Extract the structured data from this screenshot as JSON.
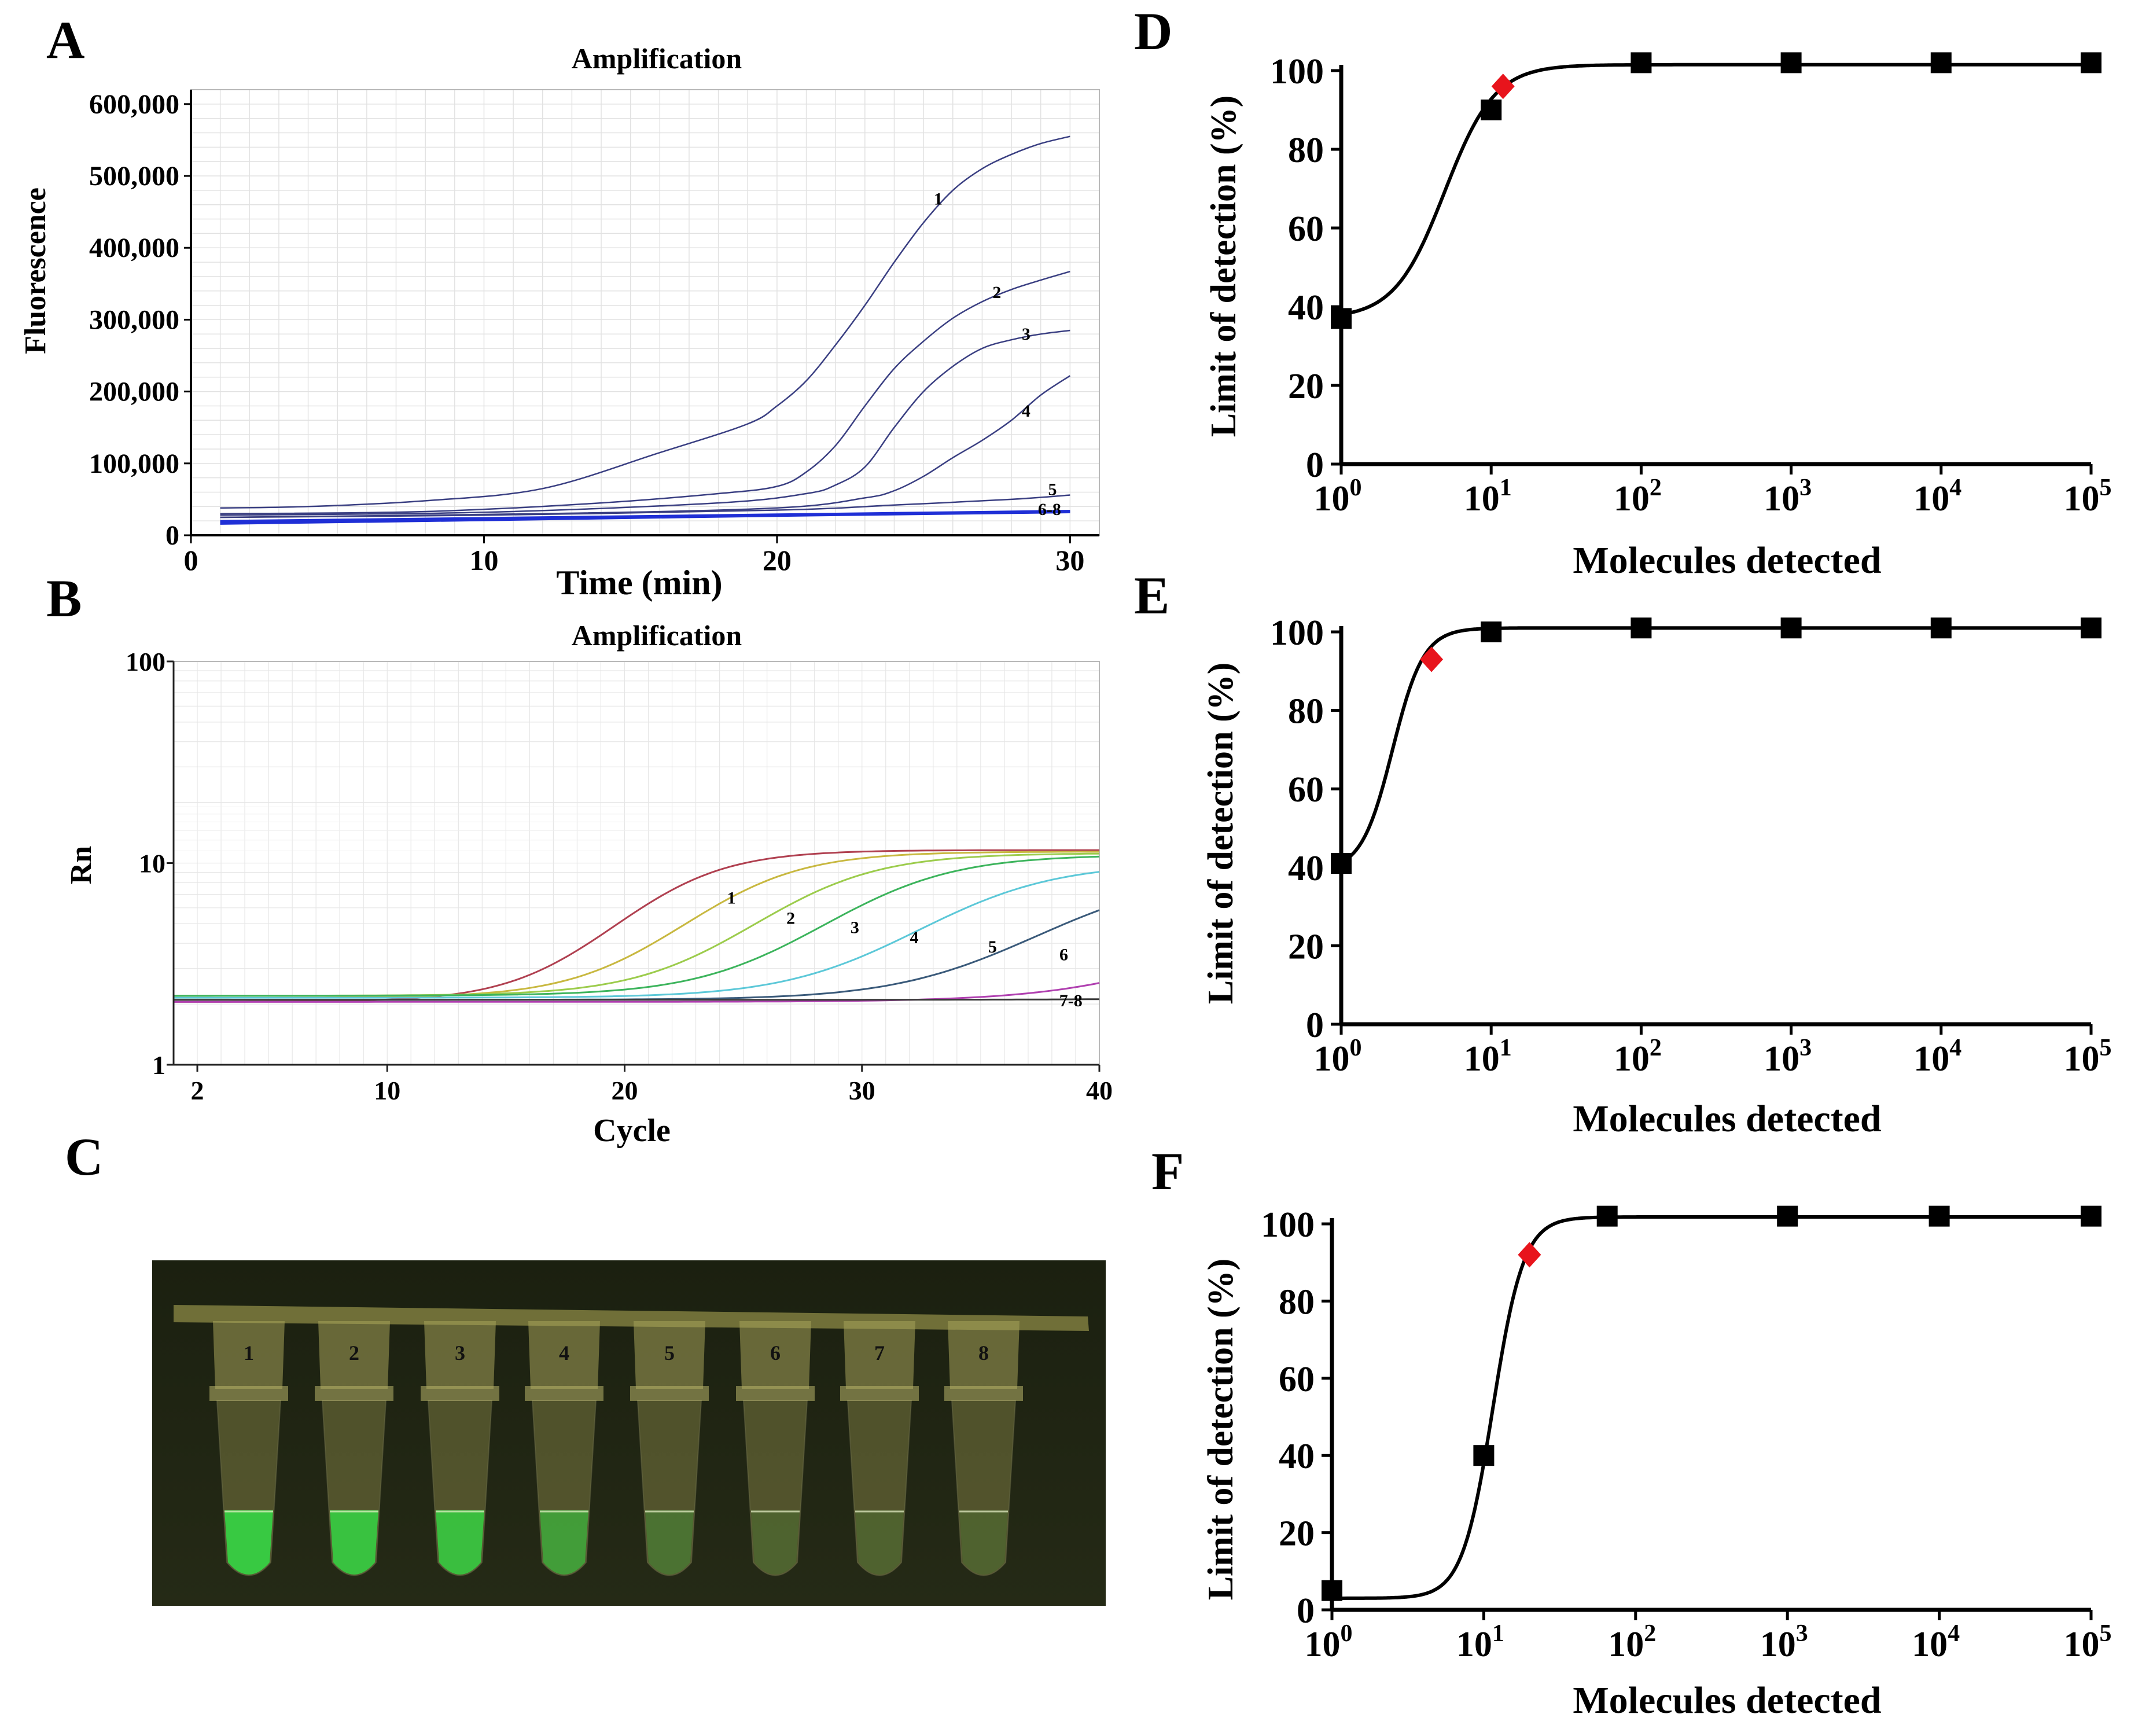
{
  "panels": {
    "A": {
      "letter": "A"
    },
    "B": {
      "letter": "B"
    },
    "C": {
      "letter": "C"
    },
    "D": {
      "letter": "D"
    },
    "E": {
      "letter": "E"
    },
    "F": {
      "letter": "F"
    }
  },
  "colors": {
    "curve_A": "#3a3f82",
    "curve_A_low": "#1f2fd6",
    "lod_line": "#000000",
    "lod_marker": "#000000",
    "lod_highlight": "#e8141c",
    "gel_bg": "#1f2413",
    "fluor_green": "#35d844"
  },
  "tubes": {
    "labels": [
      "1",
      "2",
      "3",
      "4",
      "5",
      "6",
      "7",
      "8"
    ],
    "fluorescence": [
      0.95,
      0.9,
      0.85,
      0.55,
      0.18,
      0.05,
      0.04,
      0.04
    ]
  },
  "chart_data": [
    {
      "id": "A",
      "type": "line",
      "title": "Amplification",
      "xlabel": "Time (min)",
      "ylabel": "Fluorescence",
      "xlim": [
        0,
        31
      ],
      "ylim": [
        0,
        620000
      ],
      "xticks": [
        "0",
        "10",
        "20",
        "30"
      ],
      "yticks": [
        "0",
        "100,000",
        "200,000",
        "300,000",
        "400,000",
        "500,000",
        "600,000"
      ],
      "grid": true,
      "series": [
        {
          "name": "1",
          "x": [
            1,
            4,
            8,
            12,
            16,
            19,
            20,
            21,
            22,
            23,
            24,
            25,
            26,
            27,
            28,
            29,
            30
          ],
          "y": [
            38000,
            40000,
            48000,
            65000,
            115000,
            155000,
            180000,
            215000,
            265000,
            320000,
            380000,
            435000,
            480000,
            510000,
            530000,
            545000,
            555000
          ]
        },
        {
          "name": "2",
          "x": [
            1,
            8,
            14,
            18,
            20,
            21,
            22,
            23,
            24,
            25,
            26,
            27,
            28,
            29,
            30
          ],
          "y": [
            30000,
            33000,
            45000,
            58000,
            68000,
            88000,
            125000,
            180000,
            232000,
            270000,
            302000,
            325000,
            342000,
            355000,
            367000
          ]
        },
        {
          "name": "3",
          "x": [
            1,
            10,
            18,
            21,
            22,
            23,
            24,
            25,
            26,
            27,
            28,
            29,
            30
          ],
          "y": [
            28000,
            32000,
            45000,
            58000,
            70000,
            95000,
            150000,
            200000,
            235000,
            260000,
            272000,
            280000,
            285000
          ]
        },
        {
          "name": "4",
          "x": [
            1,
            12,
            20,
            23,
            24,
            25,
            26,
            27,
            28,
            29,
            30
          ],
          "y": [
            25000,
            30000,
            38000,
            52000,
            62000,
            82000,
            108000,
            132000,
            160000,
            195000,
            222000
          ]
        },
        {
          "name": "5",
          "x": [
            1,
            10,
            20,
            24,
            28,
            30
          ],
          "y": [
            25000,
            28000,
            35000,
            42000,
            50000,
            56000
          ]
        },
        {
          "name": "6",
          "x": [
            1,
            10,
            20,
            30
          ],
          "y": [
            20000,
            24000,
            29000,
            34000
          ]
        },
        {
          "name": "7",
          "x": [
            1,
            10,
            20,
            30
          ],
          "y": [
            18000,
            22000,
            28000,
            33000
          ]
        },
        {
          "name": "8",
          "x": [
            1,
            10,
            20,
            30
          ],
          "y": [
            16000,
            21000,
            27000,
            32000
          ]
        }
      ],
      "annotations": [
        "1",
        "2",
        "3",
        "4",
        "5",
        "6-8"
      ]
    },
    {
      "id": "B",
      "type": "line",
      "title": "Amplification",
      "xlabel": "Cycle",
      "ylabel": "Rn",
      "xlim": [
        1,
        40
      ],
      "ylim": [
        1,
        100
      ],
      "yscale": "log",
      "xticks": [
        "2",
        "10",
        "20",
        "30",
        "40"
      ],
      "yticks": [
        "1",
        "10",
        "100"
      ],
      "grid": true,
      "series": [
        {
          "name": "1",
          "color": "#b04050",
          "midpoint": 21.5,
          "slope": 0.45,
          "base": 2.05,
          "top": 11.6
        },
        {
          "name": "2",
          "color": "#c8b840",
          "midpoint": 24.5,
          "slope": 0.42,
          "base": 2.15,
          "top": 11.4
        },
        {
          "name": "3",
          "color": "#9ccc4c",
          "midpoint": 27.5,
          "slope": 0.4,
          "base": 2.2,
          "top": 11.2
        },
        {
          "name": "4",
          "color": "#3cb45c",
          "midpoint": 30.5,
          "slope": 0.38,
          "base": 2.2,
          "top": 11.0
        },
        {
          "name": "5",
          "color": "#5cc8d8",
          "midpoint": 34.5,
          "slope": 0.36,
          "base": 2.15,
          "top": 10.0
        },
        {
          "name": "6",
          "color": "#3a5a7a",
          "midpoint": 39.5,
          "slope": 0.34,
          "base": 2.1,
          "top": 9.0
        },
        {
          "name": "7",
          "color": "#b040b0",
          "midpoint": 48.0,
          "slope": 0.3,
          "base": 2.05,
          "top": 8.0
        },
        {
          "name": "8",
          "color": "#3a3a3a",
          "midpoint": 60.0,
          "slope": 0.3,
          "base": 2.1,
          "top": 8.0
        }
      ],
      "annotations": [
        "1",
        "2",
        "3",
        "4",
        "5",
        "6",
        "7-8"
      ]
    },
    {
      "id": "D",
      "type": "scatter",
      "xlabel": "Molecules detected",
      "ylabel": "Limit of detection (%)",
      "xscale": "log",
      "xlim": [
        1,
        100000
      ],
      "ylim": [
        0,
        100
      ],
      "xticks_exp": [
        "0",
        "1",
        "2",
        "3",
        "4",
        "5"
      ],
      "yticks": [
        "0",
        "20",
        "40",
        "60",
        "80",
        "100"
      ],
      "points": {
        "x": [
          1,
          10,
          100,
          1000,
          10000,
          100000
        ],
        "y": [
          37,
          90,
          102,
          102,
          102,
          102
        ]
      },
      "highlight": {
        "x": 12,
        "y": 96
      },
      "fit": {
        "top": 101.5,
        "bottom": 37,
        "ec50": 4.9,
        "hill": 2.6
      }
    },
    {
      "id": "E",
      "type": "scatter",
      "xlabel": "Molecules detected",
      "ylabel": "Limit of detection (%)",
      "xscale": "log",
      "xlim": [
        1,
        100000
      ],
      "ylim": [
        0,
        100
      ],
      "xticks_exp": [
        "0",
        "1",
        "2",
        "3",
        "4",
        "5"
      ],
      "yticks": [
        "0",
        "20",
        "40",
        "60",
        "80",
        "100"
      ],
      "points": {
        "x": [
          1,
          10,
          100,
          1000,
          10000,
          100000
        ],
        "y": [
          41,
          100,
          101,
          101,
          101,
          101
        ]
      },
      "highlight": {
        "x": 4,
        "y": 93
      },
      "fit": {
        "top": 101,
        "bottom": 39,
        "ec50": 2.2,
        "hill": 4.2
      }
    },
    {
      "id": "F",
      "type": "scatter",
      "xlabel": "Molecules detected",
      "ylabel": "Limit of detection (%)",
      "xscale": "log",
      "xlim": [
        1,
        100000
      ],
      "ylim": [
        0,
        100
      ],
      "xticks_exp": [
        "0",
        "1",
        "2",
        "3",
        "4",
        "5"
      ],
      "yticks": [
        "0",
        "20",
        "40",
        "60",
        "80",
        "100"
      ],
      "points": {
        "x": [
          1,
          10,
          65,
          1000,
          10000,
          100000
        ],
        "y": [
          5,
          40,
          102,
          102,
          102,
          102
        ]
      },
      "highlight": {
        "x": 20,
        "y": 92
      },
      "fit": {
        "top": 101.8,
        "bottom": 3,
        "ec50": 11.5,
        "hill": 4.3
      }
    }
  ]
}
